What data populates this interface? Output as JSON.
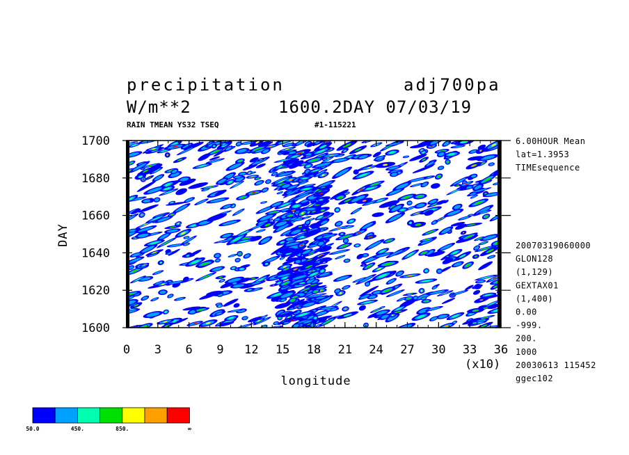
{
  "header": {
    "title": "precipitation",
    "run_name": "adj700pa",
    "units": "W/m**2",
    "time_label": "1600.2DAY 07/03/19",
    "descriptor": "RAIN TMEAN YS32 TSEQ",
    "id": "#1-115221"
  },
  "info_top": [
    "6.00HOUR Mean",
    "lat=1.3953",
    "TIMEsequence"
  ],
  "info_bottom": [
    "20070319060000",
    "GLON128",
    "(1,129)",
    "GEXTAX01",
    "(1,400)",
    "0.00",
    "-999.",
    "200.",
    "1000",
    "20030613 115452",
    "ggec102"
  ],
  "chart_data": {
    "type": "heatmap",
    "title": "precipitation",
    "units": "W/m**2",
    "xlabel": "longitude",
    "ylabel": "DAY",
    "x_multiplier_label": "(x10)",
    "xlim": [
      0,
      36
    ],
    "ylim": [
      1600,
      1700
    ],
    "x_ticks": [
      "0",
      "3",
      "6",
      "9",
      "12",
      "15",
      "18",
      "21",
      "24",
      "27",
      "30",
      "33",
      "36"
    ],
    "y_ticks": [
      "1600",
      "1620",
      "1640",
      "1660",
      "1680",
      "1700"
    ],
    "colorbar": {
      "colors": [
        "#0000ff",
        "#00a0ff",
        "#00ffb0",
        "#00e000",
        "#ffff00",
        "#ffa000",
        "#ff0000"
      ],
      "labels": [
        "50.0",
        "450.",
        "850.",
        "∞"
      ]
    },
    "field_note": "dense eastward-propagating rain streaks; intensity mostly 50–450 with scattered maxima above 850"
  }
}
